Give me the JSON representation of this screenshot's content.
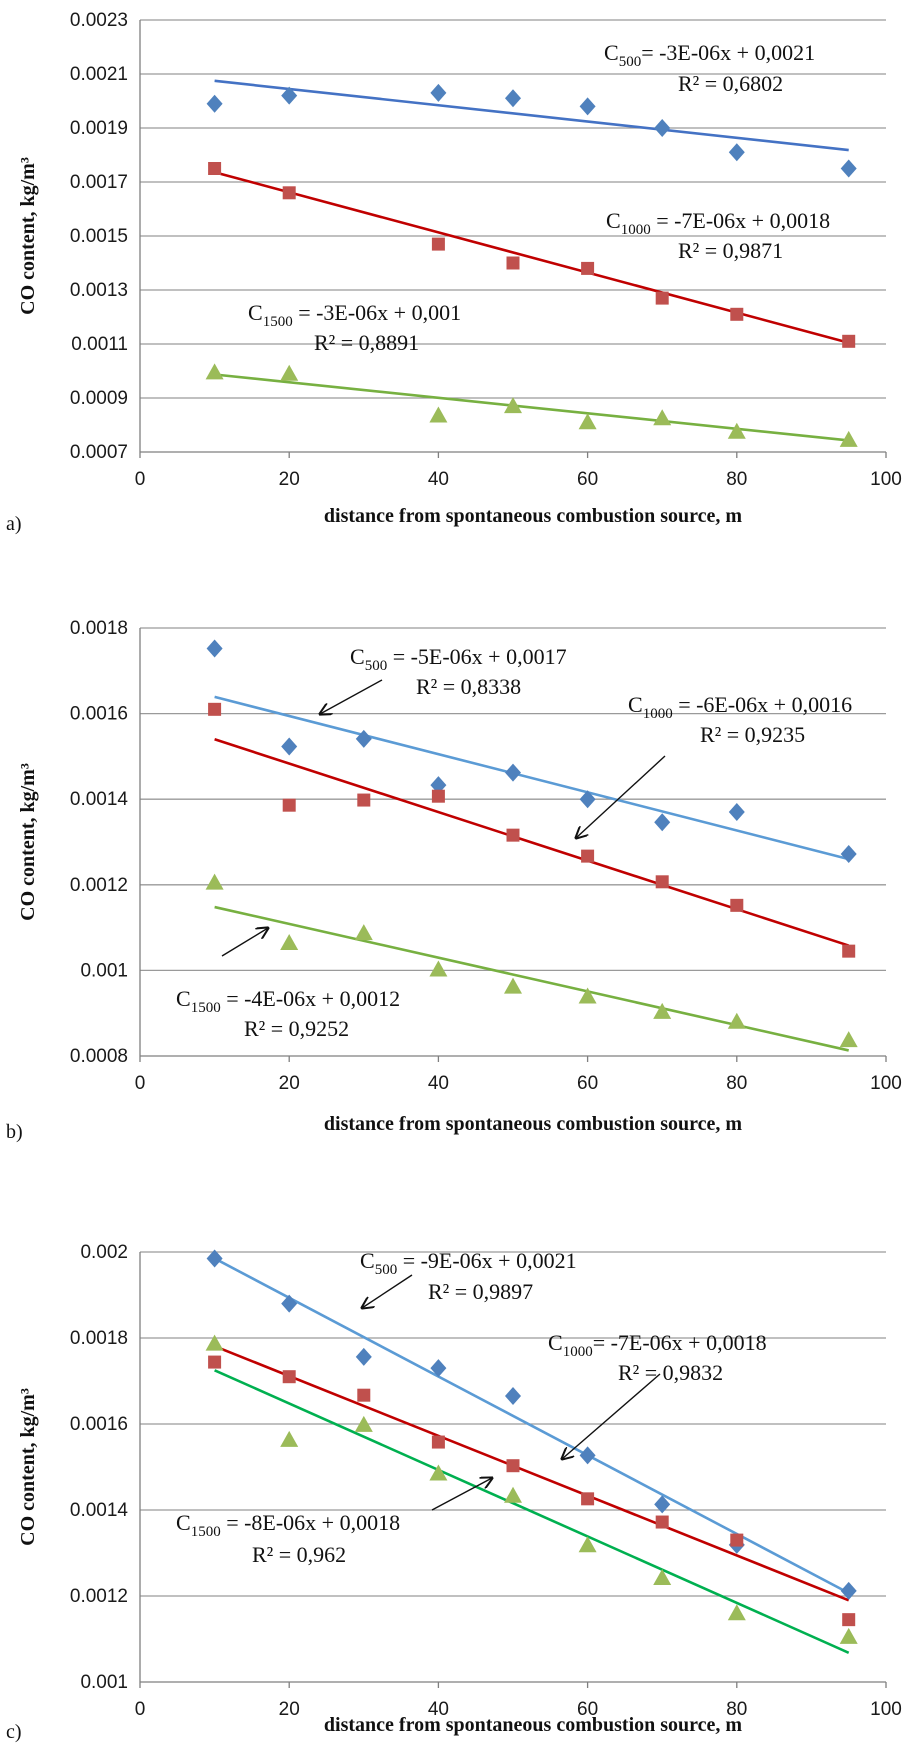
{
  "chart_data": [
    {
      "type": "scatter",
      "panel_label": "a)",
      "xlabel": "distance from spontaneous combustion source, m",
      "ylabel": "CO content, kg/m³",
      "xlim": [
        0,
        100
      ],
      "ylim": [
        0.0007,
        0.0023
      ],
      "xticks": [
        "0",
        "20",
        "40",
        "60",
        "80",
        "100"
      ],
      "yticks": [
        "0.0007",
        "0.0009",
        "0.0011",
        "0.0013",
        "0.0015",
        "0.0017",
        "0.0019",
        "0.0021",
        "0.0023"
      ],
      "grid": true,
      "series": [
        {
          "marker": "diamond",
          "color": "#4f81bd",
          "trend_color": "#4472c4",
          "x": [
            10,
            20,
            40,
            50,
            60,
            70,
            80,
            95
          ],
          "y": [
            0.00199,
            0.00202,
            0.00203,
            0.00201,
            0.00198,
            0.0019,
            0.00181,
            0.00175
          ],
          "trend": [
            0.0020747,
            0.0018183
          ],
          "equation": {
            "lead": "C",
            "sub": "500",
            "rest": "= -3E-06x + 0,0021",
            "r2": "R² = 0,6802"
          }
        },
        {
          "marker": "square",
          "color": "#c0504d",
          "trend_color": "#c00000",
          "x": [
            10,
            20,
            40,
            50,
            60,
            70,
            80,
            95
          ],
          "y": [
            0.00175,
            0.00166,
            0.00147,
            0.0014,
            0.00138,
            0.00127,
            0.00121,
            0.00111
          ],
          "trend": [
            0.0017363,
            0.0011046
          ],
          "equation": {
            "lead": "C",
            "sub": "1000",
            "rest": " = -7E-06x + 0,0018",
            "r2": "R² = 0,9871"
          }
        },
        {
          "marker": "triangle",
          "color": "#9bbb59",
          "trend_color": "#77b041",
          "x": [
            10,
            20,
            40,
            50,
            60,
            70,
            80,
            95
          ],
          "y": [
            0.000995,
            0.00099,
            0.000835,
            0.00087,
            0.00081,
            0.000825,
            0.000775,
            0.000745
          ],
          "trend": [
            0.000987,
            0.0007427
          ],
          "equation": {
            "lead": "C",
            "sub": "1500",
            "rest": " = -3E-06x + 0,001",
            "r2": "R² = 0,8891"
          }
        }
      ]
    },
    {
      "type": "scatter",
      "panel_label": "b)",
      "xlabel": "distance from spontaneous combustion source, m",
      "ylabel": "CO content, kg/m³",
      "xlim": [
        0,
        100
      ],
      "ylim": [
        0.0008,
        0.0018
      ],
      "xticks": [
        "0",
        "20",
        "40",
        "60",
        "80",
        "100"
      ],
      "yticks": [
        "0.0008",
        "0.001",
        "0.0012",
        "0.0014",
        "0.0016",
        "0.0018"
      ],
      "grid": true,
      "series": [
        {
          "marker": "diamond",
          "color": "#4f81bd",
          "trend_color": "#5b9bd5",
          "x": [
            10,
            20,
            30,
            40,
            50,
            60,
            70,
            80,
            95
          ],
          "y": [
            0.001752,
            0.001523,
            0.001541,
            0.001433,
            0.001462,
            0.0014,
            0.001346,
            0.00137,
            0.001272
          ],
          "trend": [
            0.001639,
            0.00126
          ],
          "equation": {
            "lead": "C",
            "sub": "500",
            "rest": " = -5E-06x + 0,0017",
            "r2": "R² = 0,8338"
          }
        },
        {
          "marker": "square",
          "color": "#c0504d",
          "trend_color": "#c00000",
          "x": [
            10,
            20,
            30,
            40,
            50,
            60,
            70,
            80,
            95
          ],
          "y": [
            0.00161,
            0.001386,
            0.001398,
            0.001407,
            0.001316,
            0.001267,
            0.001207,
            0.001152,
            0.001045
          ],
          "trend": [
            0.00154,
            0.001058
          ],
          "equation": {
            "lead": "C",
            "sub": "1000",
            "rest": " = -6E-06x + 0,0016",
            "r2": "R² = 0,9235"
          }
        },
        {
          "marker": "triangle",
          "color": "#9bbb59",
          "trend_color": "#77b041",
          "x": [
            10,
            20,
            30,
            40,
            50,
            60,
            70,
            80,
            95
          ],
          "y": [
            0.001205,
            0.001064,
            0.001087,
            0.001002,
            0.000962,
            0.000939,
            0.000903,
            0.00088,
            0.000837
          ],
          "trend": [
            0.001148,
            0.000813
          ],
          "equation": {
            "lead": "C",
            "sub": "1500",
            "rest": " = -4E-06x + 0,0012",
            "r2": "R² = 0,9252"
          }
        }
      ]
    },
    {
      "type": "scatter",
      "panel_label": "c)",
      "xlabel": "distance from spontaneous combustion source, m",
      "ylabel": "CO content, kg/m³",
      "xlim": [
        0,
        100
      ],
      "ylim": [
        0.001,
        0.002
      ],
      "xticks": [
        "0",
        "20",
        "40",
        "60",
        "80",
        "100"
      ],
      "yticks": [
        "0.001",
        "0.0012",
        "0.0014",
        "0.0016",
        "0.0018",
        "0.002"
      ],
      "grid": true,
      "series": [
        {
          "marker": "diamond",
          "color": "#4f81bd",
          "trend_color": "#5b9bd5",
          "x": [
            10,
            20,
            30,
            40,
            50,
            60,
            70,
            80,
            95
          ],
          "y": [
            0.001985,
            0.00188,
            0.001756,
            0.00173,
            0.001665,
            0.001527,
            0.001413,
            0.001319,
            0.001212
          ],
          "trend": [
            0.001985,
            0.001207
          ],
          "equation": {
            "lead": "C",
            "sub": "500",
            "rest": " = -9E-06x + 0,0021",
            "r2": "R² = 0,9897"
          }
        },
        {
          "marker": "square",
          "color": "#c0504d",
          "trend_color": "#c00000",
          "x": [
            10,
            20,
            30,
            40,
            50,
            60,
            70,
            80,
            95
          ],
          "y": [
            0.001744,
            0.00171,
            0.001667,
            0.001558,
            0.001503,
            0.001426,
            0.001372,
            0.00133,
            0.001145
          ],
          "trend": [
            0.001781,
            0.00119
          ],
          "equation": {
            "lead": "C",
            "sub": "1000",
            "rest": "= -7E-06x + 0,0018",
            "r2": "R² = 0,9832"
          }
        },
        {
          "marker": "triangle",
          "color": "#9bbb59",
          "trend_color": "#00b050",
          "x": [
            10,
            20,
            30,
            40,
            50,
            60,
            70,
            80,
            95
          ],
          "y": [
            0.001787,
            0.001563,
            0.001598,
            0.001485,
            0.001433,
            0.001318,
            0.001242,
            0.00116,
            0.001105
          ],
          "trend": [
            0.001725,
            0.001068
          ],
          "equation": {
            "lead": "C",
            "sub": "1500",
            "rest": " = -8E-06x + 0,0018",
            "r2": "R² = 0,962"
          }
        }
      ]
    }
  ]
}
